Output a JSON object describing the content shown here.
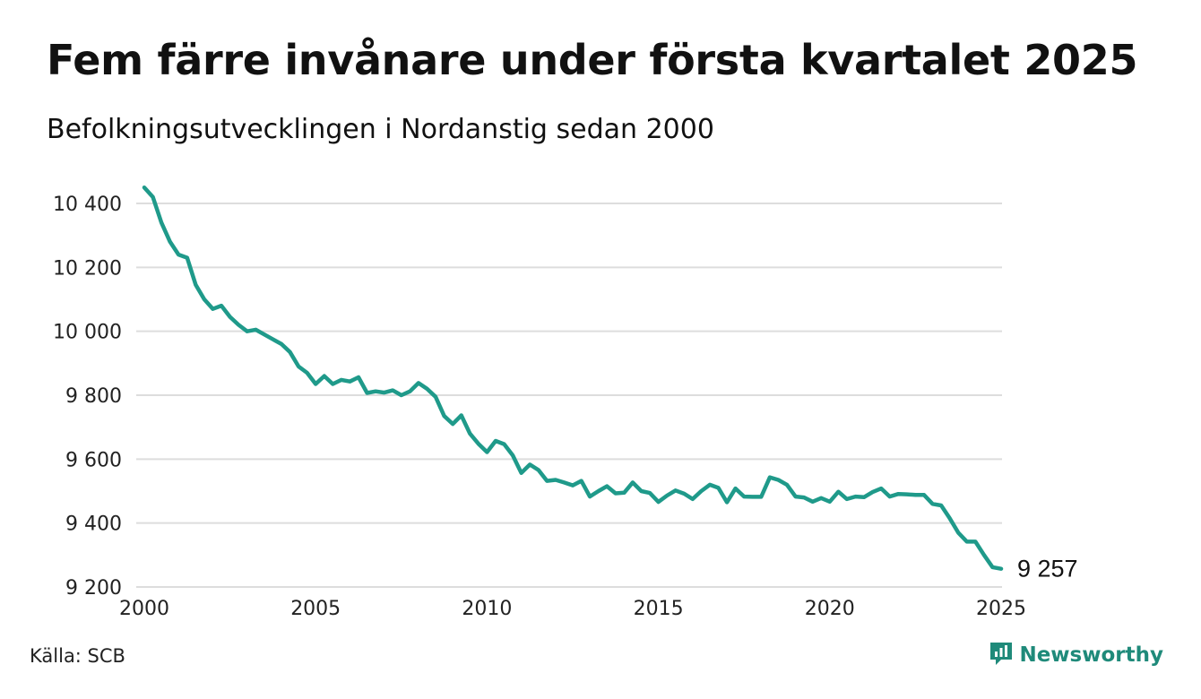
{
  "header": {
    "title": "Fem färre invånare under första kvartalet 2025",
    "subtitle": "Befolkningsutvecklingen i Nordanstig sedan 2000"
  },
  "footer": {
    "source": "Källa: SCB",
    "brand": "Newsworthy",
    "brand_icon": "newsworthy-logo-icon"
  },
  "colors": {
    "line": "#1f9a8a",
    "grid": "#dddddd",
    "brand": "#1f8a7a"
  },
  "chart_data": {
    "type": "line",
    "title": "Fem färre invånare under första kvartalet 2025",
    "subtitle": "Befolkningsutvecklingen i Nordanstig sedan 2000",
    "xlabel": "",
    "ylabel": "",
    "xlim": [
      2000,
      2025
    ],
    "ylim": [
      9200,
      10400
    ],
    "grid": true,
    "legend": "none",
    "x_ticks": [
      2000,
      2005,
      2010,
      2015,
      2020,
      2025
    ],
    "x_tick_labels": [
      "2000",
      "2005",
      "2010",
      "2015",
      "2020",
      "2025"
    ],
    "y_ticks": [
      9200,
      9400,
      9600,
      9800,
      10000,
      10200,
      10400
    ],
    "y_tick_labels": [
      "9 200",
      "9 400",
      "9 600",
      "9 800",
      "10 000",
      "10 200",
      "10 400"
    ],
    "end_label": "9 257",
    "series": [
      {
        "x": [
          2000.0,
          2000.25,
          2000.5,
          2000.75,
          2001.0,
          2001.25,
          2001.5,
          2001.75,
          2002.0,
          2002.25,
          2002.5,
          2002.75,
          2003.0,
          2003.25,
          2003.5,
          2003.75,
          2004.0,
          2004.25,
          2004.5,
          2004.75,
          2005.0,
          2005.25,
          2005.5,
          2005.75,
          2006.0,
          2006.25,
          2006.5,
          2006.75,
          2007.0,
          2007.25,
          2007.5,
          2007.75,
          2008.0,
          2008.25,
          2008.5,
          2008.75,
          2009.0,
          2009.25,
          2009.5,
          2009.75,
          2010.0,
          2010.25,
          2010.5,
          2010.75,
          2011.0,
          2011.25,
          2011.5,
          2011.75,
          2012.0,
          2012.25,
          2012.5,
          2012.75,
          2013.0,
          2013.25,
          2013.5,
          2013.75,
          2014.0,
          2014.25,
          2014.5,
          2014.75,
          2015.0,
          2015.25,
          2015.5,
          2015.75,
          2016.0,
          2016.25,
          2016.5,
          2016.75,
          2017.0,
          2017.25,
          2017.5,
          2017.75,
          2018.0,
          2018.25,
          2018.5,
          2018.75,
          2019.0,
          2019.25,
          2019.5,
          2019.75,
          2020.0,
          2020.25,
          2020.5,
          2020.75,
          2021.0,
          2021.25,
          2021.5,
          2021.75,
          2022.0,
          2022.25,
          2022.5,
          2022.75,
          2023.0,
          2023.25,
          2023.5,
          2023.75,
          2024.0,
          2024.25,
          2024.5,
          2024.75,
          2025.0
        ],
        "values": [
          10450,
          10420,
          10340,
          10280,
          10240,
          10230,
          10145,
          10100,
          10070,
          10080,
          10045,
          10020,
          10000,
          10005,
          9990,
          9975,
          9960,
          9935,
          9890,
          9870,
          9835,
          9860,
          9835,
          9848,
          9843,
          9856,
          9807,
          9812,
          9808,
          9815,
          9800,
          9812,
          9838,
          9820,
          9795,
          9735,
          9710,
          9737,
          9680,
          9648,
          9622,
          9657,
          9647,
          9612,
          9557,
          9583,
          9566,
          9532,
          9535,
          9527,
          9518,
          9532,
          9483,
          9500,
          9515,
          9493,
          9495,
          9527,
          9500,
          9494,
          9466,
          9486,
          9502,
          9492,
          9475,
          9500,
          9520,
          9510,
          9465,
          9508,
          9483,
          9482,
          9482,
          9543,
          9535,
          9520,
          9483,
          9480,
          9467,
          9478,
          9467,
          9498,
          9475,
          9483,
          9481,
          9497,
          9508,
          9483,
          9491,
          9490,
          9488,
          9488,
          9460,
          9455,
          9415,
          9370,
          9342,
          9342,
          9300,
          9262,
          9257
        ]
      }
    ]
  }
}
